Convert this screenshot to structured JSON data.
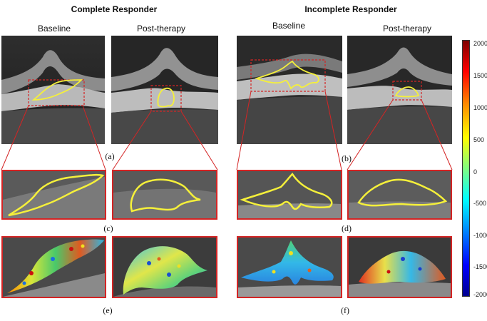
{
  "groups": {
    "complete": {
      "title": "Complete Responder",
      "baseline": "Baseline",
      "post": "Post-therapy"
    },
    "incomplete": {
      "title": "Incomplete Responder",
      "baseline": "Baseline",
      "post": "Post-therapy"
    }
  },
  "panel_labels": {
    "a": "(a)",
    "b": "(b)",
    "c": "(c)",
    "d": "(d)",
    "e": "(e)",
    "f": "(f)"
  },
  "colorbar": {
    "ticks": [
      "2000",
      "1500",
      "1000",
      "500",
      "0",
      "-500",
      "-1000",
      "-1500",
      "-2000"
    ],
    "colors": [
      "#7f0000",
      "#ff0000",
      "#ff8c00",
      "#ffff00",
      "#80ff80",
      "#00ffff",
      "#0080ff",
      "#0000ff",
      "#00008f"
    ]
  },
  "overlay_colors": {
    "roi_box": "#d42424",
    "contour": "#f5f03a"
  }
}
